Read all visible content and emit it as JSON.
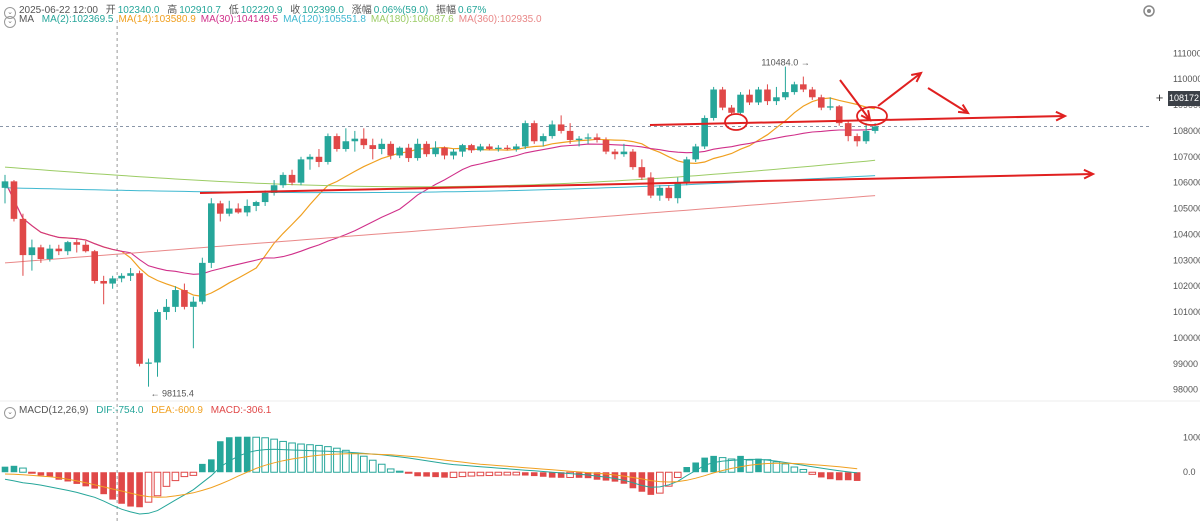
{
  "header": {
    "datetime": "2025-06-22 12:00",
    "open_label": "开",
    "open": "102340.0",
    "high_label": "高",
    "high": "102910.7",
    "low_label": "低",
    "low": "102220.9",
    "close_label": "收",
    "close": "102399.0",
    "change_label": "涨幅",
    "change": "0.06%(59.0)",
    "amp_label": "振幅",
    "amp": "0.67%"
  },
  "ma_legend": {
    "label": "MA",
    "items": [
      {
        "text": "MA(2):102369.5",
        "color": "#26a69a"
      },
      {
        "text": "MA(14):103580.9",
        "color": "#f0a020"
      },
      {
        "text": "MA(30):104149.5",
        "color": "#d0308a"
      },
      {
        "text": "MA(120):105551.8",
        "color": "#3fb8d0"
      },
      {
        "text": "MA(180):106087.6",
        "color": "#9ccc65"
      },
      {
        "text": "MA(360):102935.0",
        "color": "#e98888"
      }
    ]
  },
  "macd_legend": {
    "label": "MACD(12,26,9)",
    "dif": "DIF:-754.0",
    "dea": "DEA:-600.9",
    "macd": "MACD:-306.1",
    "dif_color": "#26a69a",
    "dea_color": "#f0a020",
    "macd_color": "#e04848"
  },
  "current_price_tag": "108172",
  "colors": {
    "up": "#26a69a",
    "down": "#e04848",
    "annotation": "#e02020"
  },
  "chart_data": [
    {
      "type": "candlestick",
      "title": "",
      "y_ticks": [
        111000,
        110000,
        109000,
        108000,
        107000,
        106000,
        105000,
        104000,
        103000,
        102000,
        101000,
        100000,
        99000,
        98000
      ],
      "ylim": [
        97600,
        111900
      ],
      "annotations": [
        {
          "text": "110484.0",
          "kind": "high_marker",
          "bar": 89,
          "value": 110484
        },
        {
          "text": "98115.4",
          "kind": "low_marker",
          "bar": 16,
          "value": 98115.4
        }
      ],
      "current_price": 108172,
      "candles": [
        {
          "o": 105800,
          "h": 106300,
          "l": 105200,
          "c": 106050
        },
        {
          "o": 106050,
          "h": 106100,
          "l": 104500,
          "c": 104600
        },
        {
          "o": 104600,
          "h": 104800,
          "l": 102400,
          "c": 103200
        },
        {
          "o": 103200,
          "h": 103800,
          "l": 102600,
          "c": 103500
        },
        {
          "o": 103500,
          "h": 103600,
          "l": 102900,
          "c": 103050
        },
        {
          "o": 103050,
          "h": 103600,
          "l": 102950,
          "c": 103450
        },
        {
          "o": 103450,
          "h": 103600,
          "l": 103200,
          "c": 103350
        },
        {
          "o": 103350,
          "h": 103750,
          "l": 103200,
          "c": 103700
        },
        {
          "o": 103700,
          "h": 103800,
          "l": 103300,
          "c": 103600
        },
        {
          "o": 103600,
          "h": 103750,
          "l": 103300,
          "c": 103350
        },
        {
          "o": 103350,
          "h": 103400,
          "l": 102100,
          "c": 102200
        },
        {
          "o": 102200,
          "h": 102400,
          "l": 101300,
          "c": 102100
        },
        {
          "o": 102100,
          "h": 102400,
          "l": 101900,
          "c": 102300
        },
        {
          "o": 102300,
          "h": 102500,
          "l": 102150,
          "c": 102400
        },
        {
          "o": 102400,
          "h": 102700,
          "l": 102200,
          "c": 102500
        },
        {
          "o": 102500,
          "h": 102600,
          "l": 98900,
          "c": 99000
        },
        {
          "o": 99000,
          "h": 99200,
          "l": 98115,
          "c": 99050
        },
        {
          "o": 99050,
          "h": 101100,
          "l": 98500,
          "c": 101000
        },
        {
          "o": 101000,
          "h": 101500,
          "l": 100700,
          "c": 101200
        },
        {
          "o": 101200,
          "h": 102000,
          "l": 101000,
          "c": 101850
        },
        {
          "o": 101850,
          "h": 102100,
          "l": 101100,
          "c": 101200
        },
        {
          "o": 101200,
          "h": 101600,
          "l": 99600,
          "c": 101400
        },
        {
          "o": 101400,
          "h": 103100,
          "l": 101300,
          "c": 102900
        },
        {
          "o": 102900,
          "h": 105400,
          "l": 102700,
          "c": 105200
        },
        {
          "o": 105200,
          "h": 105300,
          "l": 104500,
          "c": 104800
        },
        {
          "o": 104800,
          "h": 105300,
          "l": 104700,
          "c": 105000
        },
        {
          "o": 105000,
          "h": 105200,
          "l": 104800,
          "c": 104850
        },
        {
          "o": 104850,
          "h": 105350,
          "l": 104700,
          "c": 105100
        },
        {
          "o": 105100,
          "h": 105300,
          "l": 104900,
          "c": 105250
        },
        {
          "o": 105250,
          "h": 105700,
          "l": 105100,
          "c": 105600
        },
        {
          "o": 105600,
          "h": 106100,
          "l": 105500,
          "c": 105900
        },
        {
          "o": 105900,
          "h": 106400,
          "l": 105800,
          "c": 106300
        },
        {
          "o": 106300,
          "h": 106500,
          "l": 105900,
          "c": 106000
        },
        {
          "o": 106000,
          "h": 107000,
          "l": 105900,
          "c": 106900
        },
        {
          "o": 106900,
          "h": 107100,
          "l": 106500,
          "c": 107000
        },
        {
          "o": 107000,
          "h": 107300,
          "l": 106600,
          "c": 106800
        },
        {
          "o": 106800,
          "h": 107900,
          "l": 106700,
          "c": 107800
        },
        {
          "o": 107800,
          "h": 107900,
          "l": 107200,
          "c": 107300
        },
        {
          "o": 107300,
          "h": 108100,
          "l": 107200,
          "c": 107600
        },
        {
          "o": 107600,
          "h": 108000,
          "l": 107200,
          "c": 107700
        },
        {
          "o": 107700,
          "h": 108100,
          "l": 107300,
          "c": 107450
        },
        {
          "o": 107450,
          "h": 107700,
          "l": 106900,
          "c": 107300
        },
        {
          "o": 107300,
          "h": 107700,
          "l": 107100,
          "c": 107500
        },
        {
          "o": 107500,
          "h": 107600,
          "l": 106900,
          "c": 107050
        },
        {
          "o": 107050,
          "h": 107400,
          "l": 106950,
          "c": 107350
        },
        {
          "o": 107350,
          "h": 107500,
          "l": 106800,
          "c": 106950
        },
        {
          "o": 106950,
          "h": 107700,
          "l": 106850,
          "c": 107500
        },
        {
          "o": 107500,
          "h": 107600,
          "l": 107000,
          "c": 107100
        },
        {
          "o": 107100,
          "h": 107600,
          "l": 107000,
          "c": 107350
        },
        {
          "o": 107350,
          "h": 107400,
          "l": 106900,
          "c": 107050
        },
        {
          "o": 107050,
          "h": 107300,
          "l": 106900,
          "c": 107200
        },
        {
          "o": 107200,
          "h": 107500,
          "l": 107000,
          "c": 107450
        },
        {
          "o": 107450,
          "h": 107500,
          "l": 107150,
          "c": 107250
        },
        {
          "o": 107250,
          "h": 107500,
          "l": 107200,
          "c": 107400
        },
        {
          "o": 107400,
          "h": 107500,
          "l": 107250,
          "c": 107300
        },
        {
          "o": 107300,
          "h": 107450,
          "l": 107200,
          "c": 107350
        },
        {
          "o": 107350,
          "h": 107450,
          "l": 107250,
          "c": 107300
        },
        {
          "o": 107300,
          "h": 107500,
          "l": 107200,
          "c": 107400
        },
        {
          "o": 107400,
          "h": 108400,
          "l": 107300,
          "c": 108300
        },
        {
          "o": 108300,
          "h": 108400,
          "l": 107500,
          "c": 107600
        },
        {
          "o": 107600,
          "h": 107900,
          "l": 107400,
          "c": 107800
        },
        {
          "o": 107800,
          "h": 108400,
          "l": 107700,
          "c": 108250
        },
        {
          "o": 108250,
          "h": 108600,
          "l": 107900,
          "c": 108000
        },
        {
          "o": 108000,
          "h": 108300,
          "l": 107500,
          "c": 107650
        },
        {
          "o": 107650,
          "h": 107800,
          "l": 107400,
          "c": 107700
        },
        {
          "o": 107700,
          "h": 107900,
          "l": 107500,
          "c": 107750
        },
        {
          "o": 107750,
          "h": 107900,
          "l": 107550,
          "c": 107650
        },
        {
          "o": 107650,
          "h": 107750,
          "l": 107100,
          "c": 107200
        },
        {
          "o": 107200,
          "h": 107300,
          "l": 106900,
          "c": 107100
        },
        {
          "o": 107100,
          "h": 107500,
          "l": 107000,
          "c": 107200
        },
        {
          "o": 107200,
          "h": 107300,
          "l": 106500,
          "c": 106600
        },
        {
          "o": 106600,
          "h": 106900,
          "l": 106100,
          "c": 106200
        },
        {
          "o": 106200,
          "h": 106400,
          "l": 105400,
          "c": 105500
        },
        {
          "o": 105500,
          "h": 105900,
          "l": 105300,
          "c": 105800
        },
        {
          "o": 105800,
          "h": 105900,
          "l": 105300,
          "c": 105400
        },
        {
          "o": 105400,
          "h": 106200,
          "l": 105200,
          "c": 106000
        },
        {
          "o": 106000,
          "h": 107000,
          "l": 105900,
          "c": 106900
        },
        {
          "o": 106900,
          "h": 107500,
          "l": 106800,
          "c": 107400
        },
        {
          "o": 107400,
          "h": 108600,
          "l": 107300,
          "c": 108500
        },
        {
          "o": 108500,
          "h": 109700,
          "l": 108400,
          "c": 109600
        },
        {
          "o": 109600,
          "h": 109700,
          "l": 108800,
          "c": 108900
        },
        {
          "o": 108900,
          "h": 109000,
          "l": 108600,
          "c": 108700
        },
        {
          "o": 108700,
          "h": 109500,
          "l": 108600,
          "c": 109400
        },
        {
          "o": 109400,
          "h": 109600,
          "l": 109000,
          "c": 109100
        },
        {
          "o": 109100,
          "h": 109700,
          "l": 109000,
          "c": 109600
        },
        {
          "o": 109600,
          "h": 109800,
          "l": 109000,
          "c": 109150
        },
        {
          "o": 109150,
          "h": 109700,
          "l": 109000,
          "c": 109300
        },
        {
          "o": 109300,
          "h": 110484,
          "l": 109200,
          "c": 109500
        },
        {
          "o": 109500,
          "h": 109900,
          "l": 109400,
          "c": 109800
        },
        {
          "o": 109800,
          "h": 110100,
          "l": 109500,
          "c": 109600
        },
        {
          "o": 109600,
          "h": 109700,
          "l": 109200,
          "c": 109300
        },
        {
          "o": 109300,
          "h": 109400,
          "l": 108800,
          "c": 108900
        },
        {
          "o": 108900,
          "h": 109300,
          "l": 108800,
          "c": 108950
        },
        {
          "o": 108950,
          "h": 109000,
          "l": 108200,
          "c": 108300
        },
        {
          "o": 108300,
          "h": 108400,
          "l": 107600,
          "c": 107800
        },
        {
          "o": 107800,
          "h": 107900,
          "l": 107400,
          "c": 107600
        },
        {
          "o": 107600,
          "h": 108300,
          "l": 107500,
          "c": 108000
        },
        {
          "o": 108000,
          "h": 108300,
          "l": 107900,
          "c": 108172
        }
      ]
    },
    {
      "type": "bar",
      "title": "MACD(12,26,9)",
      "y_ticks": [
        1000.0,
        0.0
      ],
      "ylim": [
        -1400,
        1500
      ],
      "histogram": [
        160,
        185,
        120,
        -20,
        -95,
        -125,
        -215,
        -265,
        -335,
        -405,
        -470,
        -630,
        -785,
        -905,
        -985,
        -1005,
        -860,
        -675,
        -405,
        -240,
        -125,
        -90,
        240,
        370,
        890,
        1005,
        1020,
        1020,
        1005,
        990,
        950,
        885,
        840,
        810,
        790,
        770,
        735,
        690,
        630,
        555,
        460,
        345,
        230,
        95,
        30,
        -10,
        -115,
        -125,
        -140,
        -155,
        -150,
        -125,
        -110,
        -100,
        -95,
        -85,
        -80,
        -78,
        -95,
        -110,
        -130,
        -155,
        -160,
        -150,
        -160,
        -170,
        -215,
        -240,
        -270,
        -330,
        -460,
        -560,
        -650,
        -600,
        -400,
        -150,
        150,
        280,
        420,
        470,
        420,
        380,
        470,
        350,
        390,
        360,
        300,
        240,
        150,
        80,
        -60,
        -150,
        -200,
        -230,
        -230,
        -250
      ],
      "dif": [
        -200,
        -250,
        -300,
        -330,
        -370,
        -420,
        -470,
        -520,
        -580,
        -650,
        -720,
        -830,
        -950,
        -1060,
        -1140,
        -1200,
        -1180,
        -1100,
        -950,
        -800,
        -650,
        -500,
        -300,
        -100,
        150,
        320,
        460,
        560,
        620,
        650,
        660,
        650,
        640,
        630,
        620,
        610,
        600,
        590,
        580,
        560,
        540,
        520,
        500,
        470,
        440,
        410,
        370,
        330,
        290,
        250,
        220,
        200,
        180,
        160,
        140,
        120,
        100,
        80,
        60,
        40,
        20,
        0,
        -20,
        -40,
        -60,
        -80,
        -110,
        -140,
        -180,
        -230,
        -300,
        -380,
        -430,
        -420,
        -360,
        -260,
        -100,
        50,
        200,
        280,
        320,
        340,
        360,
        370,
        370,
        350,
        320,
        280,
        240,
        200,
        160,
        120,
        80,
        40,
        10,
        -20
      ],
      "dea": [
        -50,
        -60,
        -70,
        -90,
        -110,
        -130,
        -160,
        -200,
        -250,
        -300,
        -360,
        -420,
        -480,
        -540,
        -600,
        -660,
        -700,
        -720,
        -710,
        -680,
        -640,
        -590,
        -520,
        -440,
        -340,
        -230,
        -110,
        0,
        110,
        200,
        270,
        330,
        380,
        420,
        460,
        490,
        510,
        520,
        530,
        530,
        530,
        520,
        510,
        500,
        480,
        460,
        440,
        410,
        380,
        350,
        320,
        290,
        260,
        230,
        210,
        190,
        170,
        150,
        130,
        110,
        90,
        70,
        50,
        30,
        10,
        -10,
        -30,
        -50,
        -80,
        -110,
        -150,
        -190,
        -240,
        -270,
        -280,
        -270,
        -230,
        -170,
        -100,
        -20,
        50,
        110,
        160,
        200,
        230,
        250,
        260,
        260,
        250,
        240,
        220,
        200,
        180,
        160,
        130,
        100
      ]
    }
  ]
}
